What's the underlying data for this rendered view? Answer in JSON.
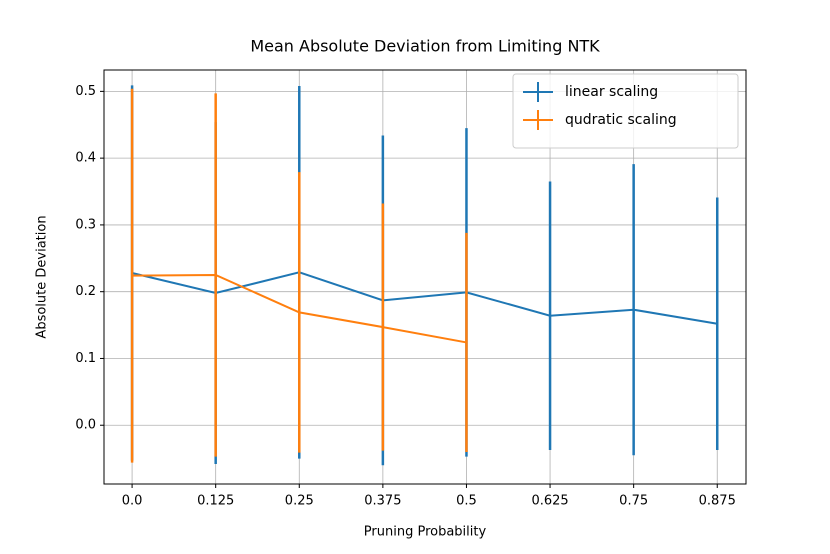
{
  "chart_data": {
    "type": "errorbar",
    "title": "Mean Absolute Deviation from Limiting NTK",
    "xlabel": "Pruning Probability",
    "ylabel": "Absolute Deviation",
    "x": [
      0,
      0.125,
      0.25,
      0.375,
      0.5,
      0.625,
      0.75,
      0.875
    ],
    "xlim": [
      -0.042,
      0.918
    ],
    "xticks": [
      {
        "value": 0,
        "label": "0.0"
      },
      0.125,
      0.25,
      0.375,
      0.5,
      0.625,
      0.75,
      0.875
    ],
    "ylim": [
      -0.088,
      0.532
    ],
    "yticks": [
      {
        "value": 0,
        "label": "0.0"
      },
      0.1,
      0.2,
      0.3,
      0.4,
      0.5
    ],
    "grid": true,
    "legend": "upper right",
    "series": [
      {
        "name": "linear scaling",
        "color": "#1f77b4",
        "values": [
          0.228,
          0.198,
          0.229,
          0.187,
          0.199,
          0.164,
          0.173,
          0.152
        ],
        "errors": [
          0.281,
          0.256,
          0.279,
          0.247,
          0.246,
          0.201,
          0.218,
          0.189
        ]
      },
      {
        "name": "qudratic scaling",
        "color": "#ff7f0e",
        "values": [
          0.224,
          0.225,
          0.169,
          0.147,
          0.124,
          null,
          null,
          null
        ],
        "errors": [
          0.28,
          0.272,
          0.21,
          0.185,
          0.164,
          null,
          null,
          null
        ]
      }
    ]
  }
}
